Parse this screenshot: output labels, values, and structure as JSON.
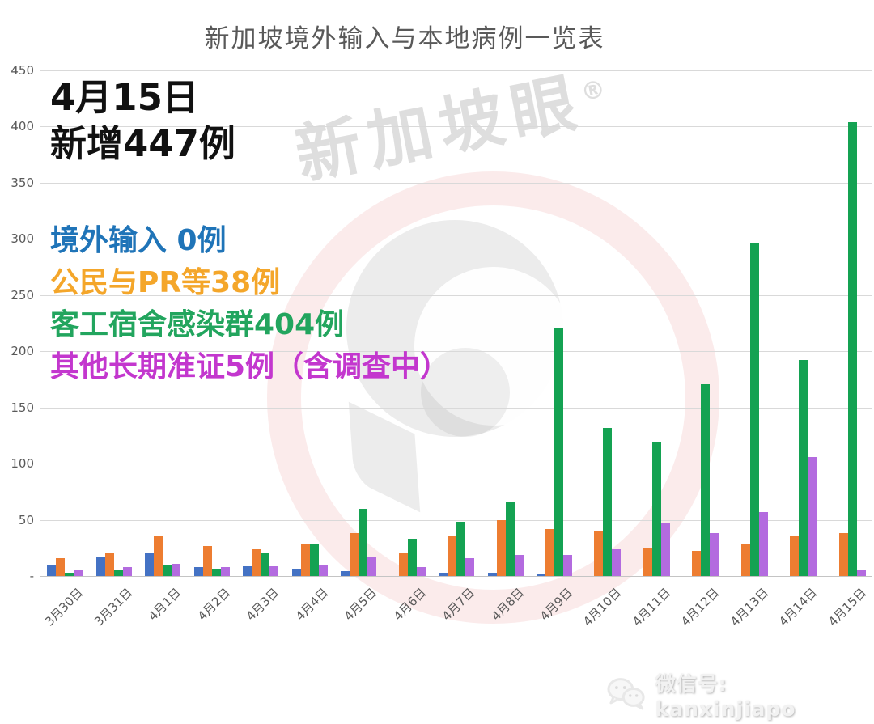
{
  "title": "新加坡境外输入与本地病例一览表",
  "annotation": {
    "line1": "4月15日",
    "line2": "新增447例"
  },
  "legend": [
    {
      "label": "境外输入 0例",
      "color": "#1f74b8"
    },
    {
      "label": "公民与PR等38例",
      "color": "#f4a62a"
    },
    {
      "label": "客工宿舍感染群404例",
      "color": "#22a55e"
    },
    {
      "label": "其他长期准证5例（含调查中）",
      "color": "#c337ce"
    }
  ],
  "watermark": {
    "text": "新加坡眼",
    "registered": "®"
  },
  "footer": {
    "wechat_label": "微信号: kanxinjiapo",
    "icon": "wechat-icon"
  },
  "chart_data": {
    "type": "bar",
    "title": "新加坡境外输入与本地病例一览表",
    "categories": [
      "3月30日",
      "3月31日",
      "4月1日",
      "4月2日",
      "4月3日",
      "4月4日",
      "4月5日",
      "4月6日",
      "4月7日",
      "4月8日",
      "4月9日",
      "4月10日",
      "4月11日",
      "4月12日",
      "4月13日",
      "4月14日",
      "4月15日"
    ],
    "series": [
      {
        "name": "境外输入",
        "color": "#4472c4",
        "values": [
          10,
          17,
          20,
          8,
          9,
          6,
          4,
          0,
          3,
          3,
          2,
          0,
          0,
          0,
          0,
          0,
          0
        ]
      },
      {
        "name": "公民与PR等",
        "color": "#ed7d31",
        "values": [
          16,
          20,
          35,
          27,
          24,
          29,
          38,
          21,
          35,
          50,
          42,
          40,
          25,
          22,
          29,
          35,
          38
        ]
      },
      {
        "name": "客工宿舍感染群",
        "color": "#14a252",
        "values": [
          3,
          5,
          10,
          6,
          21,
          29,
          60,
          33,
          48,
          66,
          221,
          132,
          119,
          171,
          296,
          192,
          404
        ]
      },
      {
        "name": "其他长期准证",
        "color": "#b36bdf",
        "values": [
          5,
          8,
          11,
          8,
          9,
          10,
          17,
          8,
          16,
          19,
          19,
          24,
          47,
          38,
          57,
          106,
          5
        ]
      }
    ],
    "xlabel": "",
    "ylabel": "",
    "ylim": [
      0,
      450
    ],
    "yticks": [
      "450",
      "400",
      "350",
      "300",
      "250",
      "200",
      "150",
      "100",
      "50",
      "-"
    ],
    "grid": true,
    "legend_position": "text annotations upper-left"
  }
}
